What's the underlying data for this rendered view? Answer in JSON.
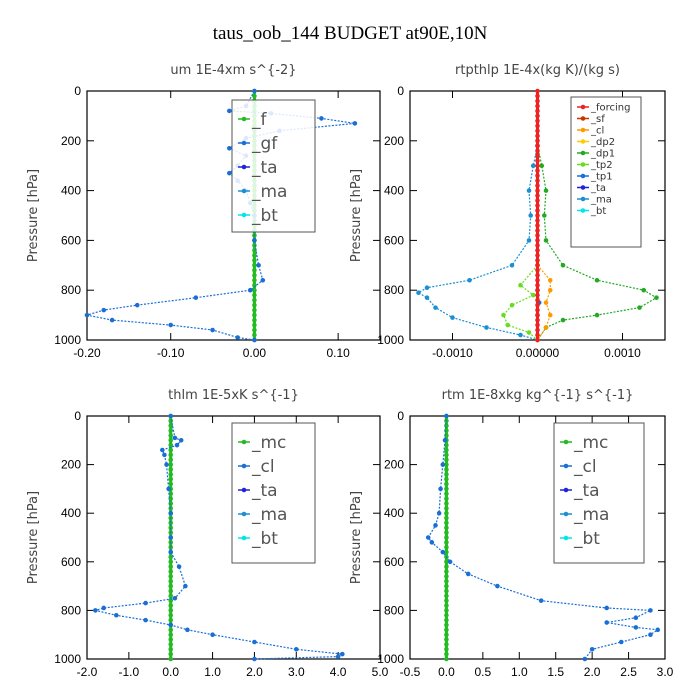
{
  "title": "taus_oob_144  BUDGET at90E,10N",
  "colors": {
    "mc": "#22bb22",
    "cl": "#1a6fd6",
    "ta": "#2222dd",
    "ma": "#1a8fd6",
    "bt": "#00e5e5",
    "forcing": "#ee2222",
    "sf": "#cc3300",
    "cl_orange": "#ff9900",
    "dp2": "#ffcc00",
    "dp1": "#22aa22",
    "tp2": "#66dd22",
    "tp1": "#1a6fd6"
  },
  "chart_data": [
    {
      "type": "line",
      "title": "um  1E-4xm s^{-2}",
      "ylabel": "Pressure [hPa]",
      "xlim": [
        -0.2,
        0.15
      ],
      "ylim": [
        1000,
        0
      ],
      "xticks": [
        "-0.20",
        "-0.10",
        "0.00",
        "0.10"
      ],
      "xtick_values": [
        -0.2,
        -0.1,
        0.0,
        0.1
      ],
      "yticks": [
        "0",
        "200",
        "400",
        "600",
        "800",
        "1000"
      ],
      "ytick_values": [
        0,
        200,
        400,
        600,
        800,
        1000
      ],
      "legend_style": "big",
      "legend": [
        {
          "label": "_f",
          "key": "mc"
        },
        {
          "label": "_gf",
          "key": "cl"
        },
        {
          "label": "_ta",
          "key": "ta"
        },
        {
          "label": "_ma",
          "key": "ma"
        },
        {
          "label": "_bt",
          "key": "bt"
        }
      ],
      "series": [
        {
          "key": "mc",
          "style": "flat",
          "x": 0.0
        },
        {
          "key": "cl",
          "style": "curve",
          "points": [
            [
              0,
              0
            ],
            [
              -0.01,
              60
            ],
            [
              -0.03,
              80
            ],
            [
              0.02,
              90
            ],
            [
              0.08,
              110
            ],
            [
              0.12,
              130
            ],
            [
              0.03,
              160
            ],
            [
              -0.01,
              190
            ],
            [
              -0.03,
              230
            ],
            [
              -0.01,
              260
            ],
            [
              -0.02,
              300
            ],
            [
              -0.03,
              330
            ],
            [
              -0.02,
              360
            ],
            [
              -0.01,
              400
            ],
            [
              -0.005,
              450
            ],
            [
              0.0,
              500
            ],
            [
              0.0,
              600
            ],
            [
              0.005,
              700
            ],
            [
              0.01,
              760
            ],
            [
              -0.005,
              800
            ],
            [
              -0.07,
              830
            ],
            [
              -0.14,
              860
            ],
            [
              -0.18,
              880
            ],
            [
              -0.2,
              900
            ],
            [
              -0.17,
              920
            ],
            [
              -0.1,
              940
            ],
            [
              -0.05,
              960
            ],
            [
              -0.02,
              990
            ],
            [
              0.0,
              1000
            ]
          ]
        }
      ]
    },
    {
      "type": "line",
      "title": "rtpthlp  1E-4x(kg K)/(kg s)",
      "ylabel": "Pressure [hPa]",
      "xlim": [
        -0.0015,
        0.0015
      ],
      "ylim": [
        1000,
        0
      ],
      "xticks": [
        "-0.0010",
        "0.00000",
        "0.0010"
      ],
      "xtick_values": [
        -0.001,
        0.0,
        0.001
      ],
      "yticks": [
        "0",
        "200",
        "400",
        "600",
        "800",
        "1000"
      ],
      "ytick_values": [
        0,
        200,
        400,
        600,
        800,
        1000
      ],
      "legend_style": "small",
      "legend": [
        {
          "label": "_forcing",
          "key": "forcing"
        },
        {
          "label": "_sf",
          "key": "sf"
        },
        {
          "label": "_cl",
          "key": "cl_orange"
        },
        {
          "label": "_dp2",
          "key": "dp2"
        },
        {
          "label": "_dp1",
          "key": "dp1"
        },
        {
          "label": "_tp2",
          "key": "tp2"
        },
        {
          "label": "_tp1",
          "key": "tp1"
        },
        {
          "label": "_ta",
          "key": "ta"
        },
        {
          "label": "_ma",
          "key": "ma"
        },
        {
          "label": "_bt",
          "key": "bt"
        }
      ],
      "series": [
        {
          "key": "dp1",
          "style": "curve",
          "points": [
            [
              0,
              220
            ],
            [
              5e-05,
              300
            ],
            [
              0.0001,
              400
            ],
            [
              8e-05,
              500
            ],
            [
              0.0001,
              600
            ],
            [
              0.0003,
              700
            ],
            [
              0.0007,
              760
            ],
            [
              0.00125,
              800
            ],
            [
              0.0014,
              830
            ],
            [
              0.0012,
              870
            ],
            [
              0.0007,
              900
            ],
            [
              0.0003,
              920
            ],
            [
              0.0001,
              950
            ],
            [
              0,
              1000
            ]
          ]
        },
        {
          "key": "ma",
          "style": "curve",
          "points": [
            [
              0,
              220
            ],
            [
              -5e-05,
              300
            ],
            [
              -0.0001,
              400
            ],
            [
              -8e-05,
              500
            ],
            [
              -0.0001,
              600
            ],
            [
              -0.0003,
              700
            ],
            [
              -0.0008,
              760
            ],
            [
              -0.0013,
              790
            ],
            [
              -0.0014,
              810
            ],
            [
              -0.0013,
              830
            ],
            [
              -0.0012,
              870
            ],
            [
              -0.001,
              910
            ],
            [
              -0.0006,
              950
            ],
            [
              -0.0002,
              980
            ],
            [
              0,
              1000
            ]
          ]
        },
        {
          "key": "tp2",
          "style": "curve",
          "points": [
            [
              0,
              700
            ],
            [
              -0.0002,
              780
            ],
            [
              -5e-05,
              820
            ],
            [
              -0.0003,
              860
            ],
            [
              -0.0004,
              900
            ],
            [
              -0.00035,
              940
            ],
            [
              -0.0001,
              970
            ],
            [
              0,
              1000
            ]
          ]
        },
        {
          "key": "cl_orange",
          "style": "curve",
          "points": [
            [
              0,
              700
            ],
            [
              0.00015,
              760
            ],
            [
              0.00015,
              800
            ],
            [
              0.0001,
              850
            ],
            [
              0.00015,
              900
            ],
            [
              0.0001,
              950
            ],
            [
              0,
              1000
            ]
          ]
        },
        {
          "key": "tp1",
          "style": "curve",
          "points": [
            [
              0,
              800
            ],
            [
              2e-05,
              850
            ],
            [
              0,
              900
            ]
          ]
        },
        {
          "key": "forcing",
          "style": "flat",
          "x": 0.0
        }
      ]
    },
    {
      "type": "line",
      "title": "thlm  1E-5xK s^{-1}",
      "ylabel": "Pressure [hPa]",
      "xlim": [
        -2.0,
        5.0
      ],
      "ylim": [
        1000,
        0
      ],
      "xticks": [
        "-2.0",
        "-1.0",
        "0.0",
        "1.0",
        "2.0",
        "3.0",
        "4.0",
        "5.0"
      ],
      "xtick_values": [
        -2,
        -1,
        0,
        1,
        2,
        3,
        4,
        5
      ],
      "yticks": [
        "0",
        "200",
        "400",
        "600",
        "800",
        "1000"
      ],
      "ytick_values": [
        0,
        200,
        400,
        600,
        800,
        1000
      ],
      "legend_style": "big",
      "legend": [
        {
          "label": "_mc",
          "key": "mc"
        },
        {
          "label": "_cl",
          "key": "cl"
        },
        {
          "label": "_ta",
          "key": "ta"
        },
        {
          "label": "_ma",
          "key": "ma"
        },
        {
          "label": "_bt",
          "key": "bt"
        }
      ],
      "series": [
        {
          "key": "mc",
          "style": "flat",
          "x": 0.0
        },
        {
          "key": "cl",
          "style": "curve",
          "points": [
            [
              0,
              0
            ],
            [
              0.1,
              90
            ],
            [
              0.25,
              100
            ],
            [
              0.15,
              120
            ],
            [
              -0.2,
              140
            ],
            [
              -0.15,
              160
            ],
            [
              -0.1,
              200
            ],
            [
              -0.05,
              300
            ],
            [
              0.0,
              400
            ],
            [
              0.0,
              500
            ],
            [
              0.0,
              560
            ],
            [
              0.2,
              620
            ],
            [
              0.35,
              700
            ],
            [
              0.1,
              750
            ],
            [
              -0.6,
              770
            ],
            [
              -1.6,
              790
            ],
            [
              -1.8,
              800
            ],
            [
              -1.3,
              820
            ],
            [
              -0.6,
              840
            ],
            [
              0.0,
              860
            ],
            [
              0.4,
              880
            ],
            [
              1.0,
              900
            ],
            [
              2.0,
              930
            ],
            [
              3.0,
              960
            ],
            [
              4.1,
              980
            ],
            [
              4.0,
              990
            ],
            [
              2.0,
              1000
            ]
          ]
        }
      ]
    },
    {
      "type": "line",
      "title": "rtm  1E-8xkg kg^{-1} s^{-1}",
      "ylabel": "Pressure [hPa]",
      "xlim": [
        -0.5,
        3.0
      ],
      "ylim": [
        1000,
        0
      ],
      "xticks": [
        "-0.5",
        "0.0",
        "0.5",
        "1.0",
        "1.5",
        "2.0",
        "2.5",
        "3.0"
      ],
      "xtick_values": [
        -0.5,
        0,
        0.5,
        1,
        1.5,
        2,
        2.5,
        3
      ],
      "yticks": [
        "0",
        "200",
        "400",
        "600",
        "800",
        "1000"
      ],
      "ytick_values": [
        0,
        200,
        400,
        600,
        800,
        1000
      ],
      "legend_style": "big",
      "legend": [
        {
          "label": "_mc",
          "key": "mc"
        },
        {
          "label": "_cl",
          "key": "cl"
        },
        {
          "label": "_ta",
          "key": "ta"
        },
        {
          "label": "_ma",
          "key": "ma"
        },
        {
          "label": "_bt",
          "key": "bt"
        }
      ],
      "series": [
        {
          "key": "mc",
          "style": "flat",
          "x": 0.0
        },
        {
          "key": "cl",
          "style": "curve",
          "points": [
            [
              0,
              0
            ],
            [
              -0.02,
              100
            ],
            [
              -0.05,
              200
            ],
            [
              -0.08,
              300
            ],
            [
              -0.1,
              400
            ],
            [
              -0.15,
              450
            ],
            [
              -0.25,
              500
            ],
            [
              -0.2,
              520
            ],
            [
              -0.05,
              560
            ],
            [
              0.05,
              600
            ],
            [
              0.3,
              650
            ],
            [
              0.7,
              700
            ],
            [
              1.3,
              760
            ],
            [
              2.2,
              790
            ],
            [
              2.8,
              800
            ],
            [
              2.6,
              830
            ],
            [
              2.2,
              850
            ],
            [
              2.6,
              870
            ],
            [
              2.9,
              880
            ],
            [
              2.8,
              900
            ],
            [
              2.4,
              930
            ],
            [
              2.0,
              960
            ],
            [
              1.9,
              1000
            ]
          ]
        }
      ]
    }
  ]
}
